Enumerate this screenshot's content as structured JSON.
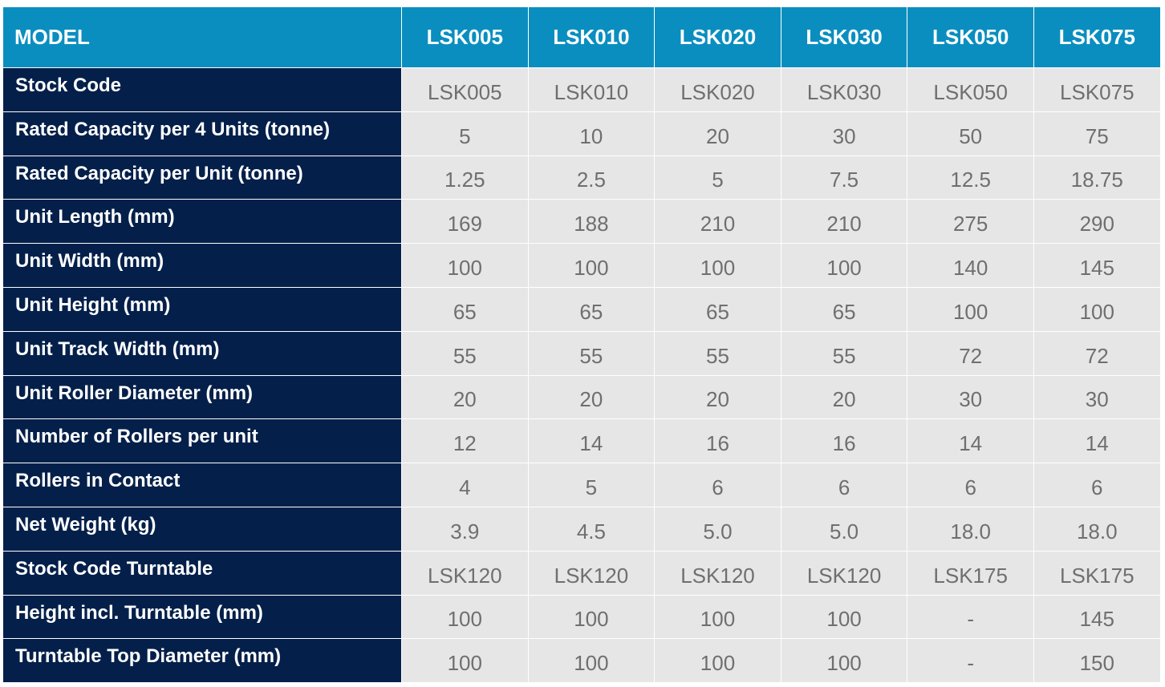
{
  "table": {
    "header_label": "MODEL",
    "models": [
      "LSK005",
      "LSK010",
      "LSK020",
      "LSK030",
      "LSK050",
      "LSK075"
    ],
    "rows": [
      {
        "label": "Stock Code",
        "values": [
          "LSK005",
          "LSK010",
          "LSK020",
          "LSK030",
          "LSK050",
          "LSK075"
        ]
      },
      {
        "label": "Rated Capacity per 4 Units (tonne)",
        "values": [
          "5",
          "10",
          "20",
          "30",
          "50",
          "75"
        ]
      },
      {
        "label": "Rated Capacity per Unit (tonne)",
        "values": [
          "1.25",
          "2.5",
          "5",
          "7.5",
          "12.5",
          "18.75"
        ]
      },
      {
        "label": "Unit Length (mm)",
        "values": [
          "169",
          "188",
          "210",
          "210",
          "275",
          "290"
        ]
      },
      {
        "label": "Unit Width (mm)",
        "values": [
          "100",
          "100",
          "100",
          "100",
          "140",
          "145"
        ]
      },
      {
        "label": "Unit Height (mm)",
        "values": [
          "65",
          "65",
          "65",
          "65",
          "100",
          "100"
        ]
      },
      {
        "label": "Unit Track Width (mm)",
        "values": [
          "55",
          "55",
          "55",
          "55",
          "72",
          "72"
        ]
      },
      {
        "label": "Unit Roller Diameter (mm)",
        "values": [
          "20",
          "20",
          "20",
          "20",
          "30",
          "30"
        ]
      },
      {
        "label": "Number of Rollers per unit",
        "values": [
          "12",
          "14",
          "16",
          "16",
          "14",
          "14"
        ]
      },
      {
        "label": "Rollers in Contact",
        "values": [
          "4",
          "5",
          "6",
          "6",
          "6",
          "6"
        ]
      },
      {
        "label": "Net Weight (kg)",
        "values": [
          "3.9",
          "4.5",
          "5.0",
          "5.0",
          "18.0",
          "18.0"
        ]
      },
      {
        "label": "Stock Code Turntable",
        "values": [
          "LSK120",
          "LSK120",
          "LSK120",
          "LSK120",
          "LSK175",
          "LSK175"
        ]
      },
      {
        "label": "Height incl. Turntable (mm)",
        "values": [
          "100",
          "100",
          "100",
          "100",
          "-",
          "145"
        ]
      },
      {
        "label": "Turntable Top Diameter (mm)",
        "values": [
          "100",
          "100",
          "100",
          "100",
          "-",
          "150"
        ]
      }
    ],
    "colors": {
      "header_bg": "#0a8ec0",
      "row_label_bg": "#04204a",
      "cell_bg": "#e6e6e6",
      "cell_text": "#6f6f6f"
    }
  }
}
